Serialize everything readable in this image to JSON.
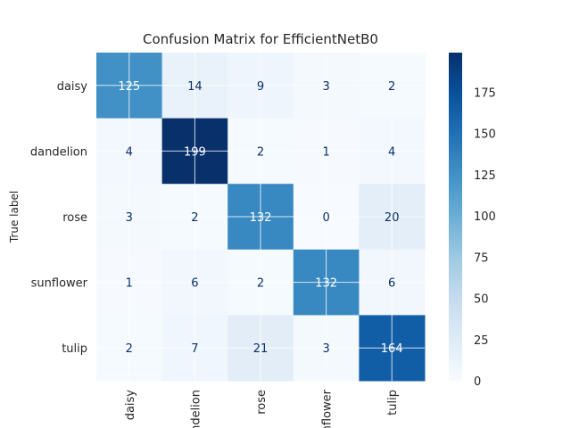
{
  "chart_data": {
    "type": "heatmap",
    "title": "Confusion Matrix for EfficientNetB0",
    "ylabel": "True label",
    "xlabel": "",
    "row_labels": [
      "daisy",
      "dandelion",
      "rose",
      "sunflower",
      "tulip"
    ],
    "col_labels": [
      "daisy",
      "dandelion",
      "rose",
      "sunflower",
      "tulip"
    ],
    "values": [
      [
        125,
        14,
        9,
        3,
        2
      ],
      [
        4,
        199,
        2,
        1,
        4
      ],
      [
        3,
        2,
        132,
        0,
        20
      ],
      [
        1,
        6,
        2,
        132,
        6
      ],
      [
        2,
        7,
        21,
        3,
        164
      ]
    ],
    "colormap": "Blues",
    "colorbar": {
      "min": 0,
      "max": 199,
      "ticks": [
        0,
        25,
        50,
        75,
        100,
        125,
        150,
        175
      ]
    },
    "grid": true
  }
}
